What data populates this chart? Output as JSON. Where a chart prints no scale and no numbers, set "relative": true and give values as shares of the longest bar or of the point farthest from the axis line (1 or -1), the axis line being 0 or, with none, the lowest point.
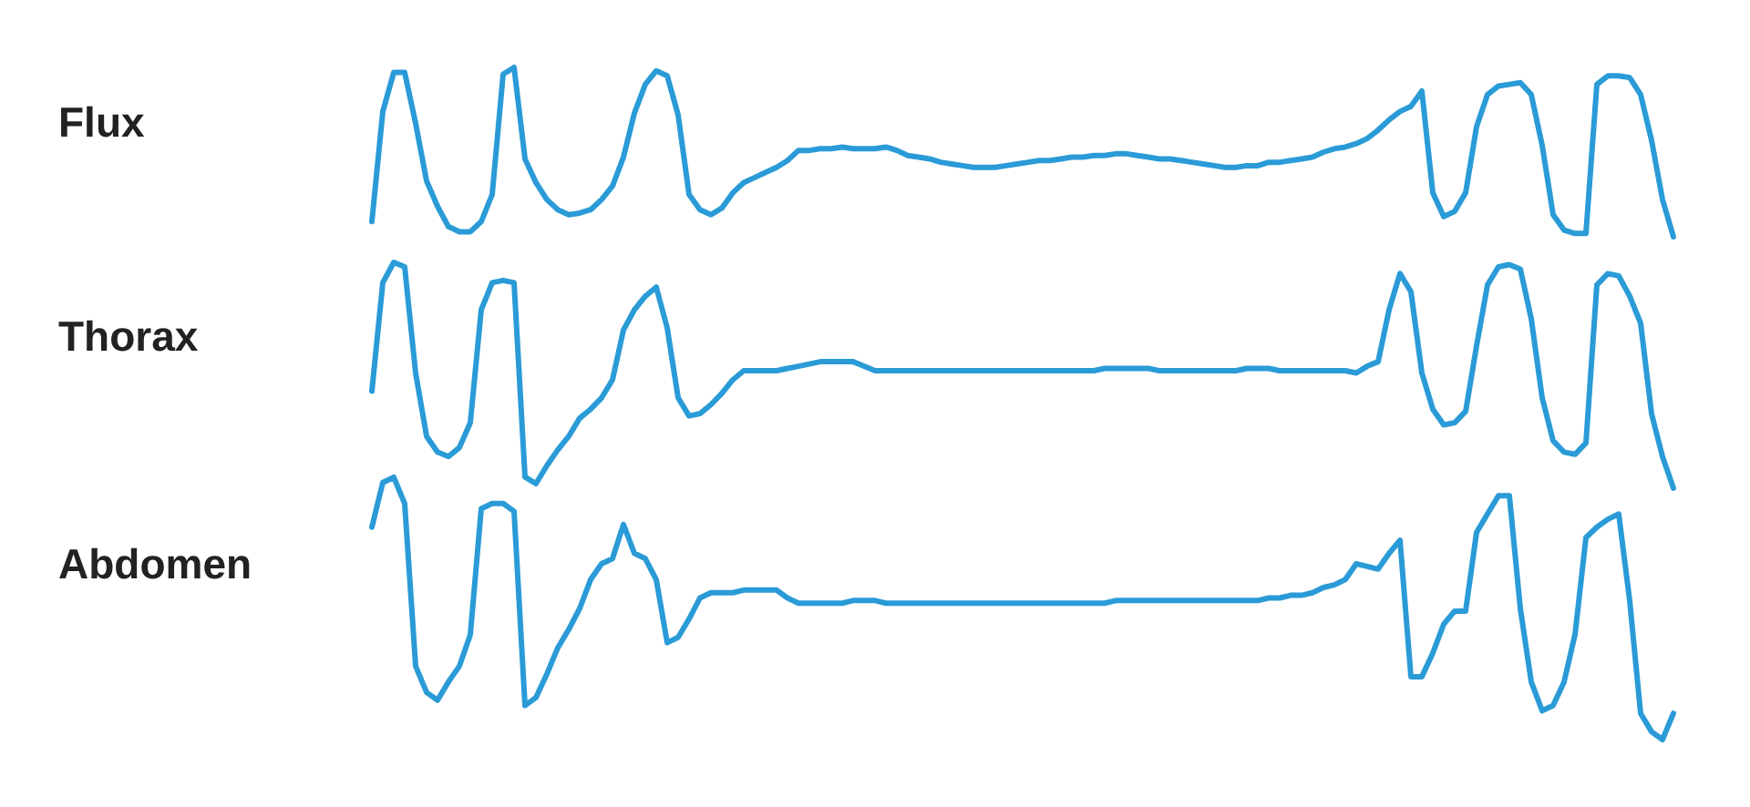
{
  "chart_data": [
    {
      "type": "line",
      "relative": true,
      "marker": "none",
      "categories": [
        null,
        null,
        null,
        null,
        null,
        null,
        null,
        null,
        null,
        null,
        null,
        null,
        null,
        null,
        null,
        null,
        null,
        null,
        null,
        null,
        null,
        null,
        null,
        null,
        null,
        null,
        null,
        null,
        null,
        null,
        null,
        null,
        null,
        null,
        null,
        null,
        null,
        null,
        null,
        null,
        null,
        null,
        null,
        null,
        null,
        null,
        null,
        null,
        null,
        null,
        null,
        null,
        null,
        null,
        null,
        null,
        null,
        null,
        null,
        null,
        null,
        null,
        null,
        null,
        null,
        null,
        null,
        null,
        null,
        null,
        null,
        null,
        null,
        null,
        null,
        null,
        null,
        null,
        null,
        null,
        null,
        null,
        null,
        null,
        null,
        null,
        null,
        null,
        null,
        null,
        null,
        null,
        null,
        null,
        null,
        null,
        null,
        null,
        null,
        null,
        null,
        null,
        null,
        null,
        null,
        null,
        null,
        null,
        null,
        null,
        null,
        null,
        null,
        null,
        null,
        null,
        null,
        null,
        null,
        null
      ],
      "series": [
        {
          "name": "Flux",
          "color": "#2a9bd7",
          "values": [
            0.09,
            0.74,
            0.97,
            0.97,
            0.67,
            0.33,
            0.18,
            0.06,
            0.03,
            0.03,
            0.09,
            0.25,
            0.96,
            1.0,
            0.46,
            0.32,
            0.22,
            0.16,
            0.13,
            0.14,
            0.16,
            0.22,
            0.3,
            0.47,
            0.73,
            0.9,
            0.98,
            0.95,
            0.72,
            0.25,
            0.16,
            0.13,
            0.17,
            0.26,
            0.32,
            0.35,
            0.38,
            0.41,
            0.45,
            0.51,
            0.51,
            0.52,
            0.52,
            0.53,
            0.52,
            0.52,
            0.52,
            0.53,
            0.51,
            0.48,
            0.47,
            0.46,
            0.44,
            0.43,
            0.42,
            0.41,
            0.41,
            0.41,
            0.42,
            0.43,
            0.44,
            0.45,
            0.45,
            0.46,
            0.47,
            0.47,
            0.48,
            0.48,
            0.49,
            0.49,
            0.48,
            0.47,
            0.46,
            0.46,
            0.45,
            0.44,
            0.43,
            0.42,
            0.41,
            0.41,
            0.42,
            0.42,
            0.44,
            0.44,
            0.45,
            0.46,
            0.47,
            0.5,
            0.52,
            0.53,
            0.55,
            0.58,
            0.63,
            0.69,
            0.74,
            0.77,
            0.86,
            0.26,
            0.12,
            0.15,
            0.26,
            0.65,
            0.84,
            0.89,
            0.9,
            0.91,
            0.84,
            0.54,
            0.13,
            0.04,
            0.02,
            0.02,
            0.9,
            0.95,
            0.95,
            0.94,
            0.84,
            0.57,
            0.22,
            0.0
          ]
        }
      ]
    },
    {
      "type": "line",
      "relative": true,
      "marker": "none",
      "categories": [
        null,
        null,
        null,
        null,
        null,
        null,
        null,
        null,
        null,
        null,
        null,
        null,
        null,
        null,
        null,
        null,
        null,
        null,
        null,
        null,
        null,
        null,
        null,
        null,
        null,
        null,
        null,
        null,
        null,
        null,
        null,
        null,
        null,
        null,
        null,
        null,
        null,
        null,
        null,
        null,
        null,
        null,
        null,
        null,
        null,
        null,
        null,
        null,
        null,
        null,
        null,
        null,
        null,
        null,
        null,
        null,
        null,
        null,
        null,
        null,
        null,
        null,
        null,
        null,
        null,
        null,
        null,
        null,
        null,
        null,
        null,
        null,
        null,
        null,
        null,
        null,
        null,
        null,
        null,
        null,
        null,
        null,
        null,
        null,
        null,
        null,
        null,
        null,
        null,
        null,
        null,
        null,
        null,
        null,
        null,
        null,
        null,
        null,
        null,
        null,
        null,
        null,
        null,
        null,
        null,
        null,
        null,
        null,
        null,
        null,
        null,
        null,
        null,
        null,
        null,
        null,
        null,
        null,
        null,
        null
      ],
      "series": [
        {
          "name": "Thorax",
          "color": "#2a9bd7",
          "values": [
            0.43,
            0.91,
            1.0,
            0.98,
            0.51,
            0.23,
            0.16,
            0.14,
            0.18,
            0.29,
            0.79,
            0.91,
            0.92,
            0.91,
            0.05,
            0.02,
            0.1,
            0.17,
            0.23,
            0.31,
            0.35,
            0.4,
            0.48,
            0.7,
            0.79,
            0.85,
            0.89,
            0.71,
            0.4,
            0.32,
            0.33,
            0.37,
            0.42,
            0.48,
            0.52,
            0.52,
            0.52,
            0.52,
            0.53,
            0.54,
            0.55,
            0.56,
            0.56,
            0.56,
            0.56,
            0.54,
            0.52,
            0.52,
            0.52,
            0.52,
            0.52,
            0.52,
            0.52,
            0.52,
            0.52,
            0.52,
            0.52,
            0.52,
            0.52,
            0.52,
            0.52,
            0.52,
            0.52,
            0.52,
            0.52,
            0.52,
            0.52,
            0.53,
            0.53,
            0.53,
            0.53,
            0.53,
            0.52,
            0.52,
            0.52,
            0.52,
            0.52,
            0.52,
            0.52,
            0.52,
            0.53,
            0.53,
            0.53,
            0.52,
            0.52,
            0.52,
            0.52,
            0.52,
            0.52,
            0.52,
            0.51,
            0.54,
            0.56,
            0.79,
            0.95,
            0.87,
            0.51,
            0.35,
            0.28,
            0.29,
            0.34,
            0.63,
            0.9,
            0.98,
            0.99,
            0.97,
            0.75,
            0.4,
            0.21,
            0.16,
            0.15,
            0.2,
            0.9,
            0.95,
            0.94,
            0.85,
            0.73,
            0.33,
            0.14,
            0.0
          ]
        }
      ]
    },
    {
      "type": "line",
      "relative": true,
      "marker": "none",
      "categories": [
        null,
        null,
        null,
        null,
        null,
        null,
        null,
        null,
        null,
        null,
        null,
        null,
        null,
        null,
        null,
        null,
        null,
        null,
        null,
        null,
        null,
        null,
        null,
        null,
        null,
        null,
        null,
        null,
        null,
        null,
        null,
        null,
        null,
        null,
        null,
        null,
        null,
        null,
        null,
        null,
        null,
        null,
        null,
        null,
        null,
        null,
        null,
        null,
        null,
        null,
        null,
        null,
        null,
        null,
        null,
        null,
        null,
        null,
        null,
        null,
        null,
        null,
        null,
        null,
        null,
        null,
        null,
        null,
        null,
        null,
        null,
        null,
        null,
        null,
        null,
        null,
        null,
        null,
        null,
        null,
        null,
        null,
        null,
        null,
        null,
        null,
        null,
        null,
        null,
        null,
        null,
        null,
        null,
        null,
        null,
        null,
        null,
        null,
        null,
        null,
        null,
        null,
        null,
        null,
        null,
        null,
        null,
        null,
        null,
        null,
        null,
        null,
        null,
        null,
        null,
        null,
        null,
        null,
        null,
        null
      ],
      "series": [
        {
          "name": "Abdomen",
          "color": "#2a9bd7",
          "values": [
            0.81,
            0.98,
            1.0,
            0.9,
            0.28,
            0.18,
            0.15,
            0.22,
            0.28,
            0.4,
            0.88,
            0.9,
            0.9,
            0.87,
            0.13,
            0.16,
            0.25,
            0.35,
            0.42,
            0.5,
            0.61,
            0.67,
            0.69,
            0.82,
            0.71,
            0.69,
            0.61,
            0.37,
            0.39,
            0.46,
            0.54,
            0.56,
            0.56,
            0.56,
            0.57,
            0.57,
            0.57,
            0.57,
            0.54,
            0.52,
            0.52,
            0.52,
            0.52,
            0.52,
            0.53,
            0.53,
            0.53,
            0.52,
            0.52,
            0.52,
            0.52,
            0.52,
            0.52,
            0.52,
            0.52,
            0.52,
            0.52,
            0.52,
            0.52,
            0.52,
            0.52,
            0.52,
            0.52,
            0.52,
            0.52,
            0.52,
            0.52,
            0.52,
            0.53,
            0.53,
            0.53,
            0.53,
            0.53,
            0.53,
            0.53,
            0.53,
            0.53,
            0.53,
            0.53,
            0.53,
            0.53,
            0.53,
            0.54,
            0.54,
            0.55,
            0.55,
            0.56,
            0.58,
            0.59,
            0.61,
            0.67,
            0.66,
            0.65,
            0.71,
            0.76,
            0.24,
            0.24,
            0.33,
            0.44,
            0.49,
            0.49,
            0.79,
            0.86,
            0.93,
            0.93,
            0.5,
            0.22,
            0.11,
            0.13,
            0.22,
            0.4,
            0.77,
            0.81,
            0.84,
            0.86,
            0.53,
            0.1,
            0.03,
            0.0,
            0.1
          ]
        }
      ]
    }
  ]
}
